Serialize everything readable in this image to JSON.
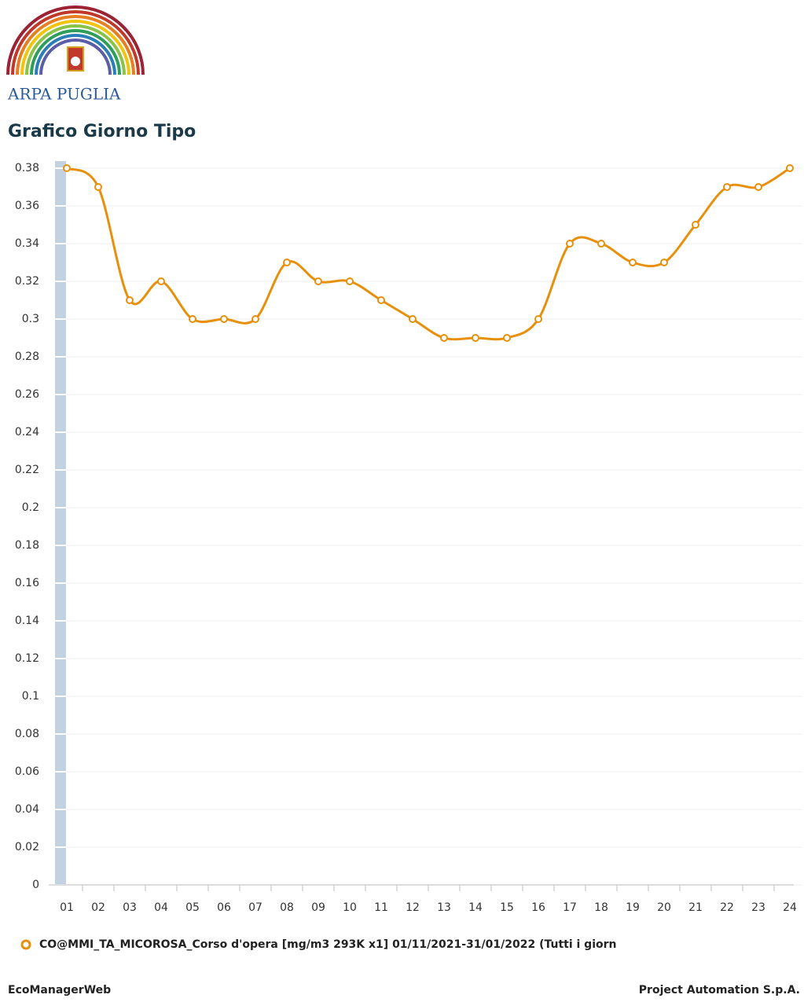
{
  "logo_text": "ARPA PUGLIA",
  "footer_left": "EcoManagerWeb",
  "footer_right": "Project Automation S.p.A.",
  "chart_data": {
    "type": "line",
    "title": "Grafico Giorno Tipo",
    "categories": [
      "01",
      "02",
      "03",
      "04",
      "05",
      "06",
      "07",
      "08",
      "09",
      "10",
      "11",
      "12",
      "13",
      "14",
      "15",
      "16",
      "17",
      "18",
      "19",
      "20",
      "21",
      "22",
      "23",
      "24"
    ],
    "series": [
      {
        "name": "CO@MMI_TA_MICOROSA_Corso d'opera [mg/m3 293K x1] 01/11/2021-31/01/2022 (Tutti i giorn",
        "color": "#e8900c",
        "values": [
          0.38,
          0.37,
          0.31,
          0.32,
          0.3,
          0.3,
          0.3,
          0.33,
          0.32,
          0.32,
          0.31,
          0.3,
          0.29,
          0.29,
          0.29,
          0.3,
          0.34,
          0.34,
          0.33,
          0.33,
          0.35,
          0.37,
          0.37,
          0.38
        ]
      }
    ],
    "ylim": [
      0,
      0.38
    ],
    "yticks": [
      0,
      0.02,
      0.04,
      0.06,
      0.08,
      0.1,
      0.12,
      0.14,
      0.16,
      0.18,
      0.2,
      0.22,
      0.24,
      0.26,
      0.28,
      0.3,
      0.32,
      0.34,
      0.36,
      0.38
    ],
    "grid": true
  }
}
